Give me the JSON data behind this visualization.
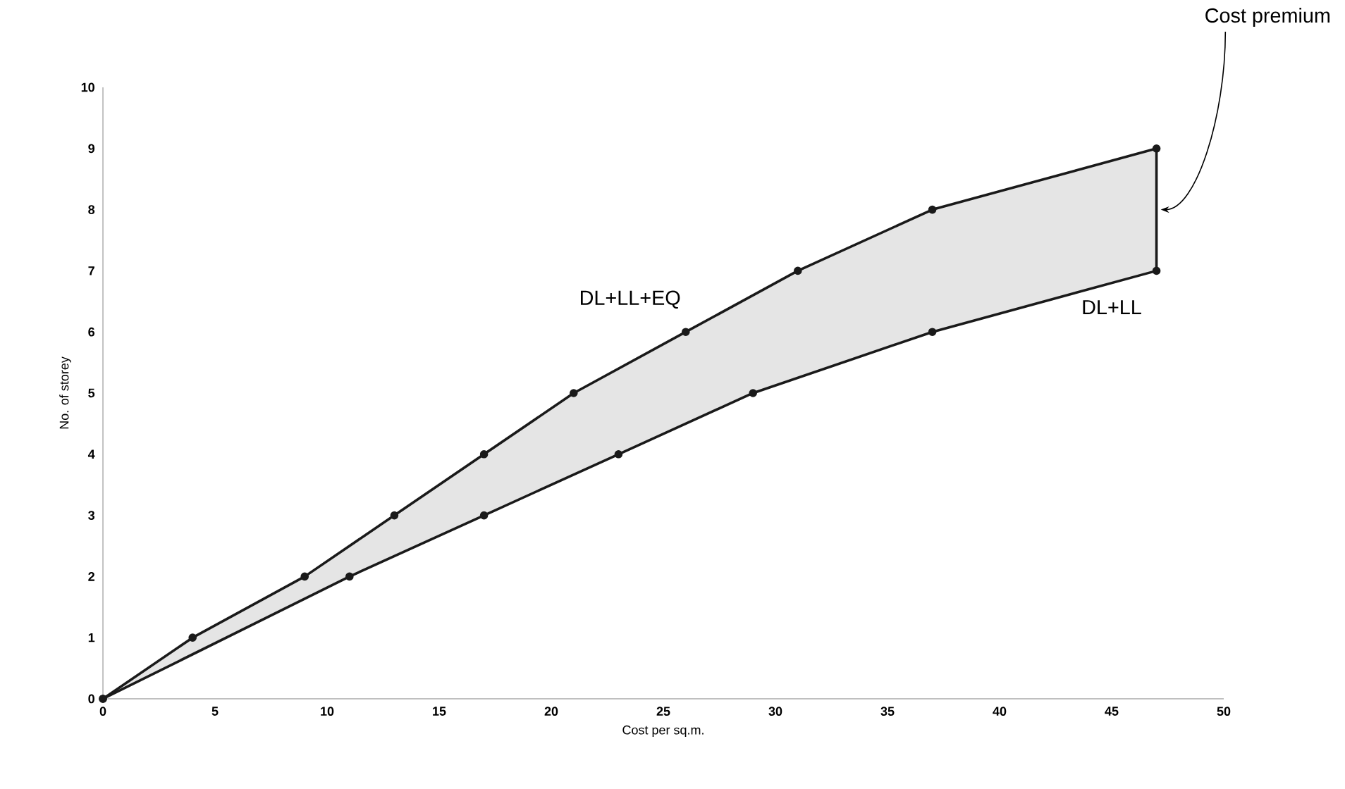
{
  "chart_data": {
    "type": "line",
    "xlabel": "Cost per sq.m.",
    "ylabel": "No. of storey",
    "xlim": [
      0,
      50
    ],
    "ylim": [
      0,
      10
    ],
    "xticks": [
      0,
      5,
      10,
      15,
      20,
      25,
      30,
      35,
      40,
      45,
      50
    ],
    "yticks": [
      0,
      1,
      2,
      3,
      4,
      5,
      6,
      7,
      8,
      9,
      10
    ],
    "marker": "circle",
    "grid": false,
    "legend": false,
    "series": [
      {
        "name": "DL+LL+EQ",
        "color": "#1a1a1a",
        "x": [
          0,
          4,
          9,
          13,
          17,
          21,
          26,
          31,
          37,
          47
        ],
        "values": [
          0,
          1,
          2,
          3,
          4,
          5,
          6,
          7,
          8,
          9
        ]
      },
      {
        "name": "DL+LL",
        "color": "#1a1a1a",
        "x": [
          0,
          11,
          17,
          23,
          29,
          37,
          47
        ],
        "values": [
          0,
          2,
          3,
          4,
          5,
          6,
          7
        ]
      },
      {
        "color": "#1a1a1a",
        "marker": "none",
        "x": [
          47,
          47
        ],
        "values": [
          7,
          9
        ]
      }
    ],
    "annotations": [
      "Cost premium"
    ]
  }
}
